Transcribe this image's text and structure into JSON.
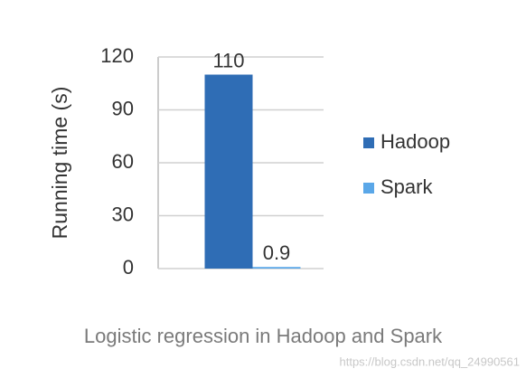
{
  "chart_data": {
    "type": "bar",
    "y_label": "Running time (s)",
    "caption": "Logistic regression in Hadoop and Spark",
    "watermark": "https://blog.csdn.net/qq_24990561",
    "categories": [
      null
    ],
    "series": [
      {
        "name": "Hadoop",
        "color": "#2f6db5",
        "values": [
          110
        ]
      },
      {
        "name": "Spark",
        "color": "#5aa7e8",
        "values": [
          0.9
        ]
      }
    ],
    "ylim": [
      0,
      120
    ],
    "yticks": [
      0,
      30,
      60,
      90,
      120
    ],
    "grid": true,
    "legend": "right"
  }
}
